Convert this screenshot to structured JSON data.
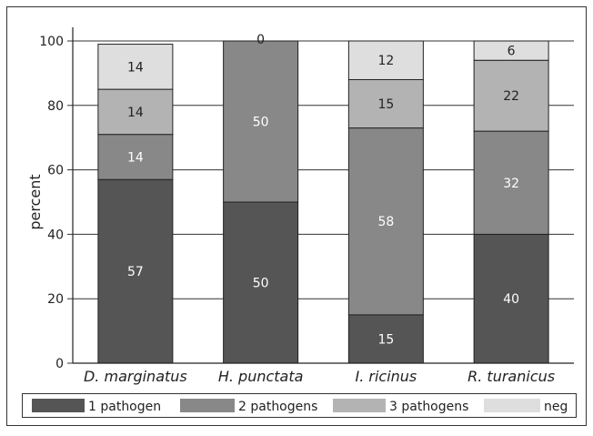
{
  "chart_data": {
    "type": "bar",
    "stacked": true,
    "categories": [
      "D. marginatus",
      "H. punctata",
      "I. ricinus",
      "R. turanicus"
    ],
    "series": [
      {
        "name": "1 pathogen",
        "color": "#555555",
        "values": [
          57,
          50,
          15,
          40
        ]
      },
      {
        "name": "2 pathogens",
        "color": "#888888",
        "values": [
          14,
          50,
          58,
          32
        ]
      },
      {
        "name": "3 pathogens",
        "color": "#b3b3b3",
        "values": [
          14,
          0,
          15,
          22
        ]
      },
      {
        "name": "neg",
        "color": "#dedede",
        "values": [
          14,
          0,
          12,
          6
        ]
      }
    ],
    "data_labels": [
      [
        "57",
        "14",
        "14",
        "14"
      ],
      [
        "50",
        "50",
        "",
        "0"
      ],
      [
        "15",
        "58",
        "15",
        "12"
      ],
      [
        "40",
        "32",
        "22",
        "6"
      ]
    ],
    "ylabel": "percent",
    "xlabel": "",
    "ylim": [
      0,
      100
    ],
    "yticks": [
      0,
      20,
      40,
      60,
      80,
      100
    ],
    "grid": true,
    "legend_position": "bottom"
  }
}
